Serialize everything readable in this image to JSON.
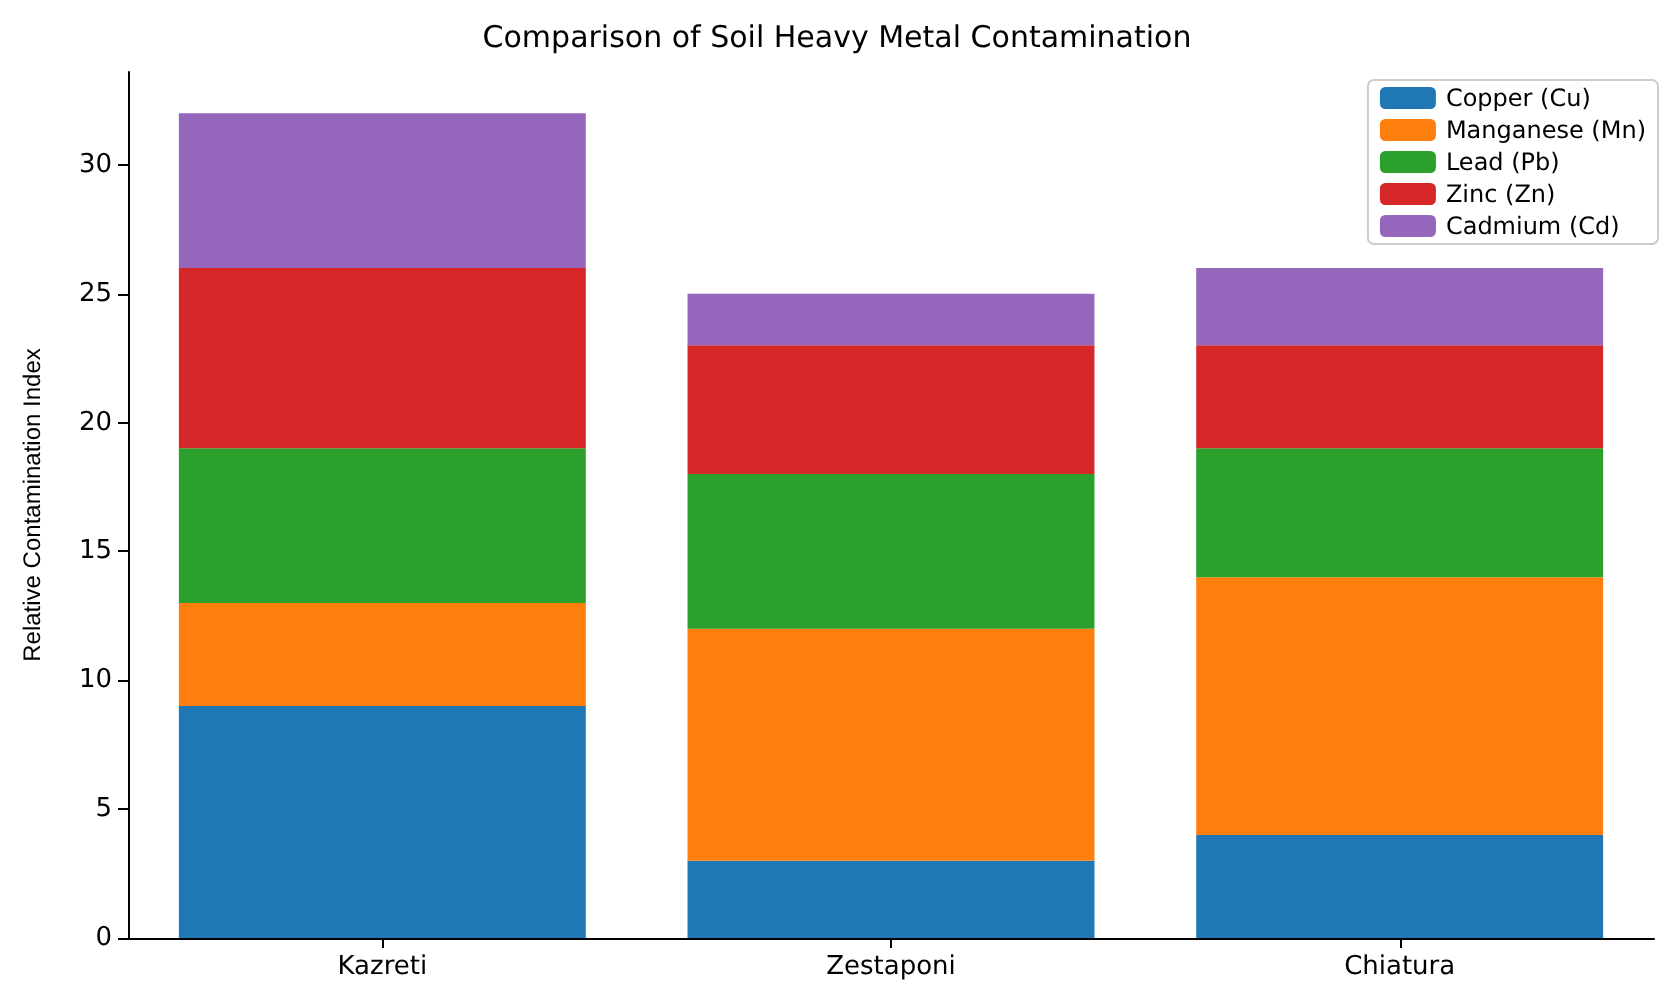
{
  "chart_data": {
    "type": "bar",
    "title": "Comparison of Soil Heavy Metal Contamination",
    "ylabel": "Relative Contamination Index",
    "categories": [
      "Kazreti",
      "Zestaponi",
      "Chiatura"
    ],
    "stacked": true,
    "series": [
      {
        "name": "Copper (Cu)",
        "color": "#1f77b4",
        "values": [
          9,
          3,
          4
        ]
      },
      {
        "name": "Manganese (Mn)",
        "color": "#ff7f0e",
        "values": [
          4,
          9,
          10
        ]
      },
      {
        "name": "Lead (Pb)",
        "color": "#2ca02c",
        "values": [
          6,
          6,
          5
        ]
      },
      {
        "name": "Zinc (Zn)",
        "color": "#d62728",
        "values": [
          7,
          5,
          4
        ]
      },
      {
        "name": "Cadmium (Cd)",
        "color": "#9467bd",
        "values": [
          6,
          2,
          3
        ]
      }
    ],
    "ylim": [
      0,
      33.6
    ],
    "yticks": [
      0,
      5,
      10,
      15,
      20,
      25,
      30
    ],
    "grid": false,
    "legend": "top right"
  }
}
